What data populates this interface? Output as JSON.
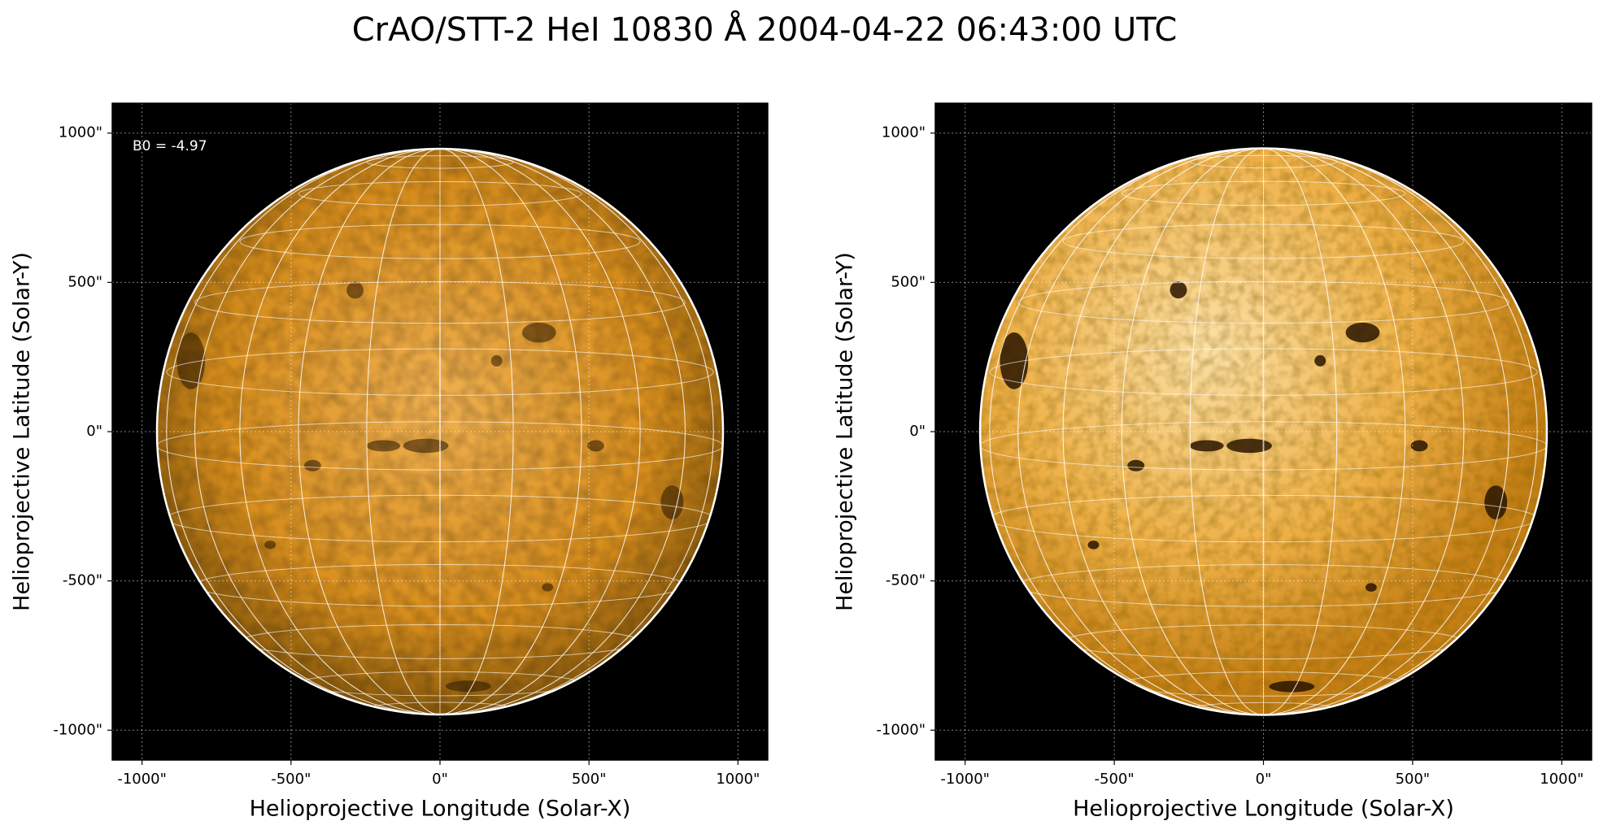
{
  "title": "CrAO/STT-2 HeI 10830 Å 2004-04-22 06:43:00 UTC",
  "chart_data": [
    {
      "type": "image",
      "xlabel": "Helioprojective Longitude (Solar-X)",
      "ylabel": "Helioprojective Latitude (Solar-Y)",
      "annotation": "B0 = -4.97",
      "grid": true,
      "xlim": [
        -1100,
        1100
      ],
      "ylim": [
        -1100,
        1100
      ],
      "xticks": [
        {
          "value": -1000,
          "label": "-1000\""
        },
        {
          "value": -500,
          "label": "-500\""
        },
        {
          "value": 0,
          "label": "0\""
        },
        {
          "value": 500,
          "label": "500\""
        },
        {
          "value": 1000,
          "label": "1000\""
        }
      ],
      "yticks": [
        {
          "value": -1000,
          "label": "-1000\""
        },
        {
          "value": -500,
          "label": "-500\""
        },
        {
          "value": 0,
          "label": "0\""
        },
        {
          "value": 500,
          "label": "500\""
        },
        {
          "value": 1000,
          "label": "1000\""
        }
      ]
    },
    {
      "type": "image",
      "xlabel": "Helioprojective Longitude (Solar-X)",
      "ylabel": "Helioprojective Latitude (Solar-Y)",
      "grid": true,
      "xlim": [
        -1100,
        1100
      ],
      "ylim": [
        -1100,
        1100
      ],
      "xticks": [
        {
          "value": -1000,
          "label": "-1000\""
        },
        {
          "value": -500,
          "label": "-500\""
        },
        {
          "value": 0,
          "label": "0\""
        },
        {
          "value": 500,
          "label": "500\""
        },
        {
          "value": 1000,
          "label": "1000\""
        }
      ],
      "yticks": [
        {
          "value": -1000,
          "label": "-1000\""
        },
        {
          "value": -500,
          "label": "-500\""
        },
        {
          "value": 0,
          "label": "0\""
        },
        {
          "value": 500,
          "label": "500\""
        },
        {
          "value": 1000,
          "label": "1000\""
        }
      ]
    }
  ]
}
